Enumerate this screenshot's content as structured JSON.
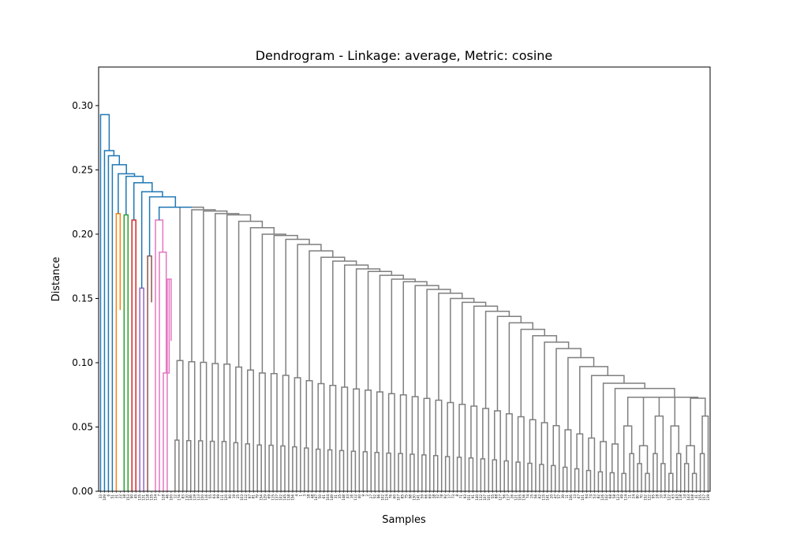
{
  "chart_data": {
    "type": "dendrogram",
    "title": "Dendrogram - Linkage: average, Metric: cosine",
    "xlabel": "Samples",
    "ylabel": "Distance",
    "ylim": [
      0,
      0.33
    ],
    "yticks": [
      0.0,
      0.05,
      0.1,
      0.15,
      0.2,
      0.25,
      0.3
    ],
    "ytick_labels": [
      "0.00",
      "0.05",
      "0.10",
      "0.15",
      "0.20",
      "0.25",
      "0.30"
    ],
    "n_leaves": 156,
    "grid": false,
    "colors": {
      "above_threshold": "#1f77b4",
      "orange": "#ff7f0e",
      "green": "#2ca02c",
      "red": "#d62728",
      "purple": "#9467bd",
      "brown": "#8c564b",
      "pink": "#e377c2",
      "gray": "#7f7f7f"
    },
    "spine_heights": [
      0.315,
      0.293,
      0.265,
      0.261,
      0.254,
      0.247,
      0.245,
      0.24,
      0.233,
      0.229,
      0.221
    ],
    "colored_clusters": [
      {
        "color": "orange",
        "height": 0.216,
        "children": [
          0.0,
          0.141
        ]
      },
      {
        "color": "green",
        "height": 0.215,
        "children": [
          0.0,
          0.0
        ]
      },
      {
        "color": "red",
        "height": 0.211,
        "children": [
          0.0,
          0.0
        ]
      },
      {
        "color": "purple",
        "height": 0.158,
        "children": [
          0.0,
          0.0
        ]
      },
      {
        "color": "brown",
        "height": 0.183,
        "children": [
          0.0,
          0.147
        ]
      },
      {
        "color": "pink",
        "height": 0.211,
        "children": [
          0.0,
          0.186,
          0.092,
          0.165,
          0.117
        ]
      }
    ],
    "gray_cluster_merge_heights": [
      0.221,
      0.219,
      0.218,
      0.216,
      0.215,
      0.21,
      0.205,
      0.2,
      0.199,
      0.196,
      0.192,
      0.187,
      0.182,
      0.179,
      0.176,
      0.173,
      0.171,
      0.168,
      0.165,
      0.163,
      0.16,
      0.157,
      0.154,
      0.15,
      0.147,
      0.144,
      0.14,
      0.136,
      0.131,
      0.126,
      0.121,
      0.116,
      0.111,
      0.104,
      0.097,
      0.09,
      0.084,
      0.08,
      0.077
    ],
    "leaf_labels": [
      "33",
      "109",
      "6",
      "51",
      "31",
      "22",
      "38",
      "153",
      "90",
      "45",
      "135",
      "131",
      "118",
      "135",
      "134",
      "7",
      "128",
      "46",
      "100",
      "12",
      "174",
      "83",
      "110",
      "146",
      "119",
      "113",
      "150",
      "116",
      "55",
      "64",
      "99",
      "111",
      "120",
      "90",
      "19",
      "25",
      "103",
      "112",
      "97",
      "81",
      "79",
      "154",
      "129",
      "69",
      "115",
      "137",
      "102",
      "145",
      "138",
      "156",
      "4",
      "1",
      "3",
      "18",
      "48",
      "147",
      "50",
      "61",
      "104",
      "149",
      "31",
      "35",
      "148",
      "43",
      "16",
      "112",
      "40",
      "9",
      "2",
      "27",
      "52",
      "96",
      "102",
      "124",
      "76",
      "60",
      "107",
      "85",
      "75",
      "98",
      "130",
      "141",
      "59",
      "66",
      "69",
      "38",
      "32",
      "78",
      "92",
      "17",
      "73",
      "8",
      "71",
      "93",
      "151",
      "91",
      "140",
      "132",
      "107",
      "101",
      "55",
      "88",
      "127",
      "56",
      "117",
      "26",
      "121",
      "105",
      "136",
      "74",
      "15",
      "56",
      "62",
      "115",
      "141",
      "20",
      "47",
      "57",
      "39",
      "11",
      "106",
      "13",
      "67",
      "101",
      "94",
      "74",
      "53",
      "82",
      "126",
      "142",
      "68",
      "58",
      "123",
      "49",
      "114",
      "11",
      "24",
      "80",
      "70",
      "152",
      "122",
      "95",
      "28",
      "10",
      "34",
      "122",
      "63",
      "143",
      "118",
      "14",
      "143",
      "108",
      "41",
      "155",
      "157",
      "139"
    ]
  }
}
